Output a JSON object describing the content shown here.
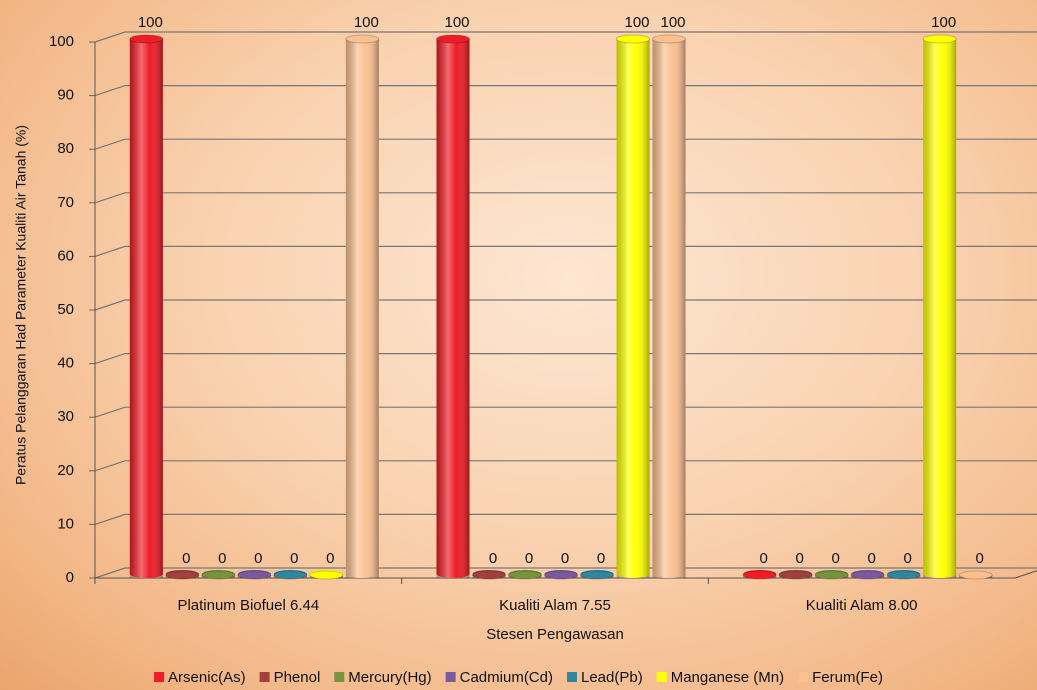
{
  "chart_data": {
    "type": "bar",
    "ylabel": "Peratus Pelanggaran Had Parameter Kualiti Air Tanah (%)",
    "xlabel": "Stesen Pengawasan",
    "categories": [
      "Platinum Biofuel 6.44",
      "Kualiti Alam 7.55",
      "Kualiti Alam 8.00"
    ],
    "series": [
      {
        "name": "Arsenic(As)",
        "color": "#ee1c24",
        "values": [
          100,
          100,
          0
        ]
      },
      {
        "name": "Phenol",
        "color": "#a0413d",
        "values": [
          0,
          0,
          0
        ]
      },
      {
        "name": "Mercury(Hg)",
        "color": "#77933c",
        "values": [
          0,
          0,
          0
        ]
      },
      {
        "name": "Cadmium(Cd)",
        "color": "#7a5a9c",
        "values": [
          0,
          0,
          0
        ]
      },
      {
        "name": "Lead(Pb)",
        "color": "#31859c",
        "values": [
          0,
          0,
          0
        ]
      },
      {
        "name": "Manganese (Mn)",
        "color": "#ffff00",
        "values": [
          0,
          100,
          100
        ]
      },
      {
        "name": "Ferum(Fe)",
        "color": "#fac090",
        "values": [
          100,
          100,
          0
        ]
      }
    ],
    "ylim": [
      0,
      100
    ],
    "yticks": [
      0,
      10,
      20,
      30,
      40,
      50,
      60,
      70,
      80,
      90,
      100
    ],
    "grid": true,
    "legend": "bottom"
  }
}
